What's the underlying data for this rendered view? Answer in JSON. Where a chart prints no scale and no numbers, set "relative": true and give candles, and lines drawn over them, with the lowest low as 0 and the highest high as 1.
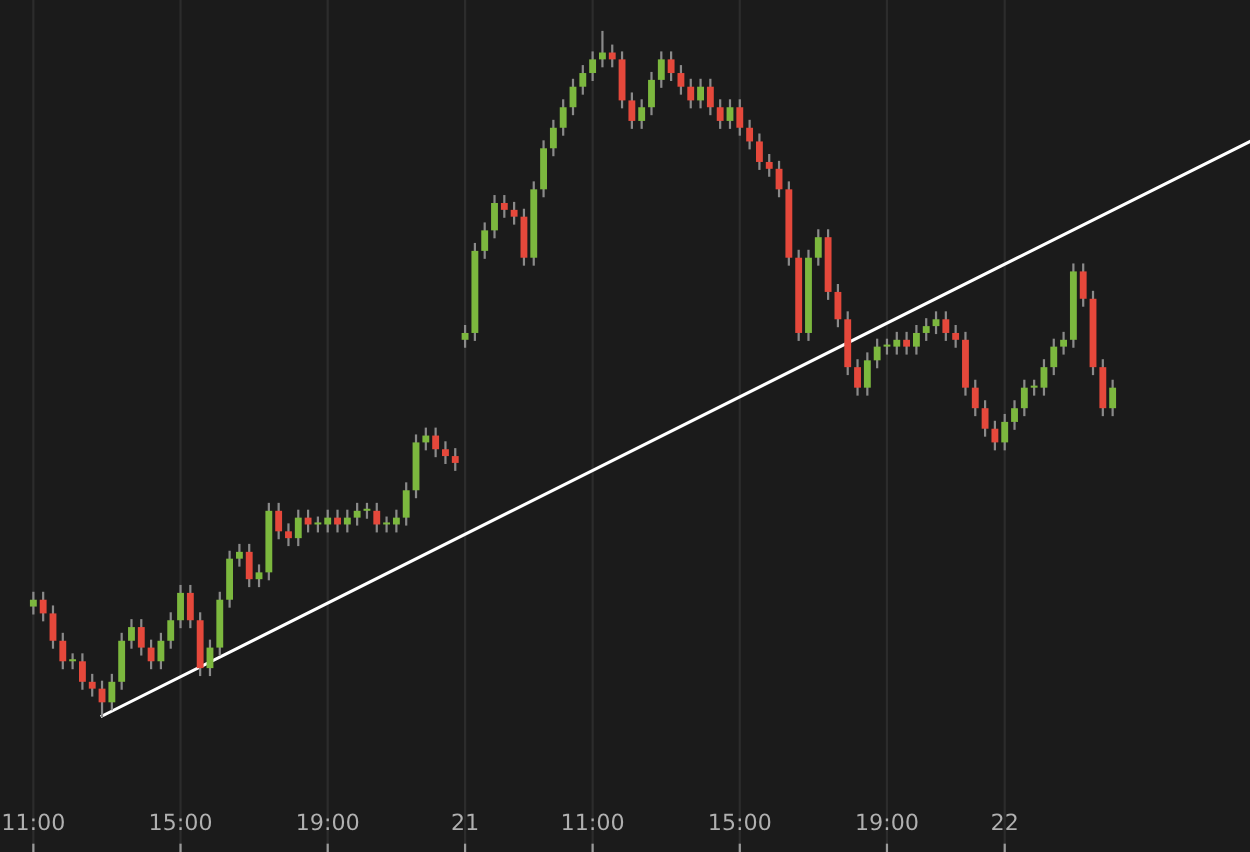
{
  "chart_data": {
    "type": "candlestick",
    "relative": true,
    "grid": "x",
    "categories": [
      "11:00",
      null,
      null,
      null,
      null,
      null,
      null,
      null,
      null,
      null,
      null,
      null,
      null,
      null,
      null,
      "15:00",
      null,
      null,
      null,
      null,
      null,
      null,
      null,
      null,
      null,
      null,
      null,
      null,
      null,
      null,
      "19:00",
      null,
      null,
      null,
      null,
      null,
      null,
      null,
      null,
      null,
      null,
      null,
      null,
      null,
      "21",
      null,
      null,
      null,
      null,
      null,
      null,
      null,
      null,
      null,
      null,
      null,
      null,
      "11:00",
      null,
      null,
      null,
      null,
      null,
      null,
      null,
      null,
      null,
      null,
      null,
      null,
      null,
      null,
      "15:00",
      null,
      null,
      null,
      null,
      null,
      null,
      null,
      null,
      null,
      null,
      null,
      null,
      null,
      null,
      "19:00",
      null,
      null,
      null,
      null,
      null,
      null,
      null,
      null,
      null,
      null,
      null,
      "22",
      null,
      null,
      null,
      null,
      null,
      null,
      null,
      null,
      null,
      null,
      null,
      null,
      null,
      null,
      null,
      null,
      null,
      null,
      null,
      null,
      null,
      null,
      null,
      null,
      null
    ],
    "series": [
      {
        "ohlc": [
          [
            0.16,
            0.18,
            0.15,
            0.17
          ],
          [
            0.17,
            0.18,
            0.14,
            0.15
          ],
          [
            0.15,
            0.16,
            0.1,
            0.11
          ],
          [
            0.11,
            0.12,
            0.07,
            0.08
          ],
          [
            0.08,
            0.09,
            0.07,
            0.08
          ],
          [
            0.08,
            0.09,
            0.04,
            0.05
          ],
          [
            0.05,
            0.06,
            0.03,
            0.04
          ],
          [
            0.04,
            0.05,
            0.0,
            0.02
          ],
          [
            0.02,
            0.06,
            0.01,
            0.05
          ],
          [
            0.05,
            0.12,
            0.04,
            0.11
          ],
          [
            0.11,
            0.14,
            0.1,
            0.13
          ],
          [
            0.13,
            0.14,
            0.09,
            0.1
          ],
          [
            0.1,
            0.11,
            0.07,
            0.08
          ],
          [
            0.08,
            0.12,
            0.07,
            0.11
          ],
          [
            0.11,
            0.15,
            0.1,
            0.14
          ],
          [
            0.14,
            0.19,
            0.13,
            0.18
          ],
          [
            0.18,
            0.19,
            0.13,
            0.14
          ],
          [
            0.14,
            0.15,
            0.06,
            0.07
          ],
          [
            0.07,
            0.11,
            0.06,
            0.1
          ],
          [
            0.1,
            0.18,
            0.09,
            0.17
          ],
          [
            0.17,
            0.24,
            0.16,
            0.23
          ],
          [
            0.23,
            0.25,
            0.22,
            0.24
          ],
          [
            0.24,
            0.25,
            0.19,
            0.2
          ],
          [
            0.2,
            0.22,
            0.19,
            0.21
          ],
          [
            0.21,
            0.31,
            0.2,
            0.3
          ],
          [
            0.3,
            0.31,
            0.26,
            0.27
          ],
          [
            0.27,
            0.28,
            0.25,
            0.26
          ],
          [
            0.26,
            0.3,
            0.25,
            0.29
          ],
          [
            0.29,
            0.3,
            0.27,
            0.28
          ],
          [
            0.28,
            0.29,
            0.27,
            0.28
          ],
          [
            0.28,
            0.3,
            0.27,
            0.29
          ],
          [
            0.29,
            0.3,
            0.27,
            0.28
          ],
          [
            0.28,
            0.3,
            0.27,
            0.29
          ],
          [
            0.29,
            0.31,
            0.28,
            0.3
          ],
          [
            0.3,
            0.31,
            0.29,
            0.3
          ],
          [
            0.3,
            0.31,
            0.27,
            0.28
          ],
          [
            0.28,
            0.29,
            0.27,
            0.28
          ],
          [
            0.28,
            0.3,
            0.27,
            0.29
          ],
          [
            0.29,
            0.34,
            0.28,
            0.33
          ],
          [
            0.33,
            0.41,
            0.32,
            0.4
          ],
          [
            0.4,
            0.42,
            0.39,
            0.41
          ],
          [
            0.41,
            0.42,
            0.38,
            0.39
          ],
          [
            0.39,
            0.4,
            0.37,
            0.38
          ],
          [
            0.38,
            0.39,
            0.36,
            0.37
          ],
          [
            0.55,
            0.57,
            0.54,
            0.56
          ],
          [
            0.56,
            0.69,
            0.55,
            0.68
          ],
          [
            0.68,
            0.72,
            0.67,
            0.71
          ],
          [
            0.71,
            0.76,
            0.7,
            0.75
          ],
          [
            0.75,
            0.76,
            0.73,
            0.74
          ],
          [
            0.74,
            0.75,
            0.72,
            0.73
          ],
          [
            0.73,
            0.74,
            0.66,
            0.67
          ],
          [
            0.67,
            0.78,
            0.66,
            0.77
          ],
          [
            0.77,
            0.84,
            0.76,
            0.83
          ],
          [
            0.83,
            0.87,
            0.82,
            0.86
          ],
          [
            0.86,
            0.9,
            0.85,
            0.89
          ],
          [
            0.89,
            0.93,
            0.88,
            0.92
          ],
          [
            0.92,
            0.95,
            0.91,
            0.94
          ],
          [
            0.94,
            0.97,
            0.93,
            0.96
          ],
          [
            0.96,
            1.0,
            0.95,
            0.97
          ],
          [
            0.97,
            0.98,
            0.95,
            0.96
          ],
          [
            0.96,
            0.97,
            0.89,
            0.9
          ],
          [
            0.9,
            0.91,
            0.86,
            0.87
          ],
          [
            0.87,
            0.9,
            0.86,
            0.89
          ],
          [
            0.89,
            0.94,
            0.88,
            0.93
          ],
          [
            0.93,
            0.97,
            0.92,
            0.96
          ],
          [
            0.96,
            0.97,
            0.93,
            0.94
          ],
          [
            0.94,
            0.95,
            0.91,
            0.92
          ],
          [
            0.92,
            0.93,
            0.89,
            0.9
          ],
          [
            0.9,
            0.93,
            0.89,
            0.92
          ],
          [
            0.92,
            0.93,
            0.88,
            0.89
          ],
          [
            0.89,
            0.9,
            0.86,
            0.87
          ],
          [
            0.87,
            0.9,
            0.86,
            0.89
          ],
          [
            0.89,
            0.9,
            0.85,
            0.86
          ],
          [
            0.86,
            0.87,
            0.83,
            0.84
          ],
          [
            0.84,
            0.85,
            0.8,
            0.81
          ],
          [
            0.81,
            0.82,
            0.79,
            0.8
          ],
          [
            0.8,
            0.81,
            0.76,
            0.77
          ],
          [
            0.77,
            0.78,
            0.66,
            0.67
          ],
          [
            0.67,
            0.68,
            0.55,
            0.56
          ],
          [
            0.56,
            0.68,
            0.55,
            0.67
          ],
          [
            0.67,
            0.71,
            0.66,
            0.7
          ],
          [
            0.7,
            0.71,
            0.61,
            0.62
          ],
          [
            0.62,
            0.63,
            0.57,
            0.58
          ],
          [
            0.58,
            0.59,
            0.5,
            0.51
          ],
          [
            0.51,
            0.52,
            0.47,
            0.48
          ],
          [
            0.48,
            0.53,
            0.47,
            0.52
          ],
          [
            0.52,
            0.55,
            0.51,
            0.54
          ],
          [
            0.54,
            0.55,
            0.53,
            0.54
          ],
          [
            0.54,
            0.56,
            0.53,
            0.55
          ],
          [
            0.55,
            0.56,
            0.53,
            0.54
          ],
          [
            0.54,
            0.57,
            0.53,
            0.56
          ],
          [
            0.56,
            0.58,
            0.55,
            0.57
          ],
          [
            0.57,
            0.59,
            0.56,
            0.58
          ],
          [
            0.58,
            0.59,
            0.55,
            0.56
          ],
          [
            0.56,
            0.57,
            0.54,
            0.55
          ],
          [
            0.55,
            0.56,
            0.47,
            0.48
          ],
          [
            0.48,
            0.49,
            0.44,
            0.45
          ],
          [
            0.45,
            0.46,
            0.41,
            0.42
          ],
          [
            0.42,
            0.43,
            0.39,
            0.4
          ],
          [
            0.4,
            0.44,
            0.39,
            0.43
          ],
          [
            0.43,
            0.46,
            0.42,
            0.45
          ],
          [
            0.45,
            0.49,
            0.44,
            0.48
          ],
          [
            0.48,
            0.49,
            0.47,
            0.48
          ],
          [
            0.48,
            0.52,
            0.47,
            0.51
          ],
          [
            0.51,
            0.55,
            0.5,
            0.54
          ],
          [
            0.54,
            0.56,
            0.53,
            0.55
          ],
          [
            0.55,
            0.66,
            0.54,
            0.65
          ],
          [
            0.65,
            0.66,
            0.6,
            0.61
          ],
          [
            0.61,
            0.62,
            0.5,
            0.51
          ],
          [
            0.51,
            0.52,
            0.44,
            0.45
          ],
          [
            0.45,
            0.49,
            0.44,
            0.48
          ],
          null,
          null,
          null,
          null,
          null,
          null,
          null,
          null,
          null,
          null,
          null,
          null,
          null,
          null
        ],
        "colors": [
          "#7cb83e",
          "#e5483b",
          "#e5483b",
          "#e5483b",
          "#7cb83e",
          "#e5483b",
          "#e5483b",
          "#e5483b",
          "#7cb83e",
          "#7cb83e",
          "#7cb83e",
          "#e5483b",
          "#e5483b",
          "#7cb83e",
          "#7cb83e",
          "#7cb83e",
          "#e5483b",
          "#e5483b",
          "#7cb83e",
          "#7cb83e",
          "#7cb83e",
          "#7cb83e",
          "#e5483b",
          "#7cb83e",
          "#7cb83e",
          "#e5483b",
          "#e5483b",
          "#7cb83e",
          "#e5483b",
          "#7cb83e",
          "#7cb83e",
          "#e5483b",
          "#7cb83e",
          "#7cb83e",
          "#7cb83e",
          "#e5483b",
          "#7cb83e",
          "#7cb83e",
          "#7cb83e",
          "#7cb83e",
          "#7cb83e",
          "#e5483b",
          "#e5483b",
          "#e5483b",
          "#7cb83e",
          "#7cb83e",
          "#7cb83e",
          "#7cb83e",
          "#e5483b",
          "#e5483b",
          "#e5483b",
          "#7cb83e",
          "#7cb83e",
          "#7cb83e",
          "#7cb83e",
          "#7cb83e",
          "#7cb83e",
          "#7cb83e",
          "#7cb83e",
          "#e5483b",
          "#e5483b",
          "#e5483b",
          "#7cb83e",
          "#7cb83e",
          "#7cb83e",
          "#e5483b",
          "#e5483b",
          "#e5483b",
          "#7cb83e",
          "#e5483b",
          "#e5483b",
          "#7cb83e",
          "#e5483b",
          "#e5483b",
          "#e5483b",
          "#e5483b",
          "#e5483b",
          "#e5483b",
          "#e5483b",
          "#7cb83e",
          "#7cb83e",
          "#e5483b",
          "#e5483b",
          "#e5483b",
          "#e5483b",
          "#7cb83e",
          "#7cb83e",
          "#7cb83e",
          "#7cb83e",
          "#e5483b",
          "#7cb83e",
          "#7cb83e",
          "#7cb83e",
          "#e5483b",
          "#e5483b",
          "#e5483b",
          "#e5483b",
          "#e5483b",
          "#e5483b",
          "#7cb83e",
          "#7cb83e",
          "#7cb83e",
          "#7cb83e",
          "#7cb83e",
          "#7cb83e",
          "#7cb83e",
          "#7cb83e",
          "#e5483b",
          "#e5483b",
          "#e5483b",
          "#7cb83e",
          null,
          null,
          null,
          null,
          null,
          null,
          null,
          null,
          null,
          null,
          null,
          null,
          null,
          null
        ]
      },
      {
        "type": "line",
        "color": "#ffffff",
        "values": [
          null,
          null,
          null,
          null,
          null,
          null,
          null,
          0,
          null,
          null,
          null,
          null,
          null,
          null,
          null,
          null,
          null,
          null,
          null,
          null,
          null,
          null,
          null,
          null,
          null,
          null,
          null,
          null,
          null,
          null,
          null,
          null,
          null,
          null,
          null,
          null,
          null,
          null,
          null,
          null,
          null,
          null,
          null,
          null,
          null,
          null,
          null,
          null,
          null,
          null,
          null,
          null,
          null,
          null,
          null,
          null,
          null,
          null,
          null,
          null,
          null,
          null,
          null,
          null,
          null,
          null,
          null,
          null,
          null,
          null,
          null,
          null,
          null,
          null,
          null,
          null,
          null,
          null,
          null,
          null,
          null,
          null,
          null,
          null,
          null,
          null,
          null,
          null,
          null,
          null,
          null,
          null,
          null,
          null,
          null,
          null,
          null,
          null,
          null,
          null,
          null,
          null,
          null,
          null,
          null,
          null,
          null,
          null,
          null,
          null,
          null,
          null,
          null,
          null,
          null,
          null,
          null,
          null,
          null,
          null,
          null,
          null,
          null,
          null,
          0.84
        ]
      }
    ]
  }
}
